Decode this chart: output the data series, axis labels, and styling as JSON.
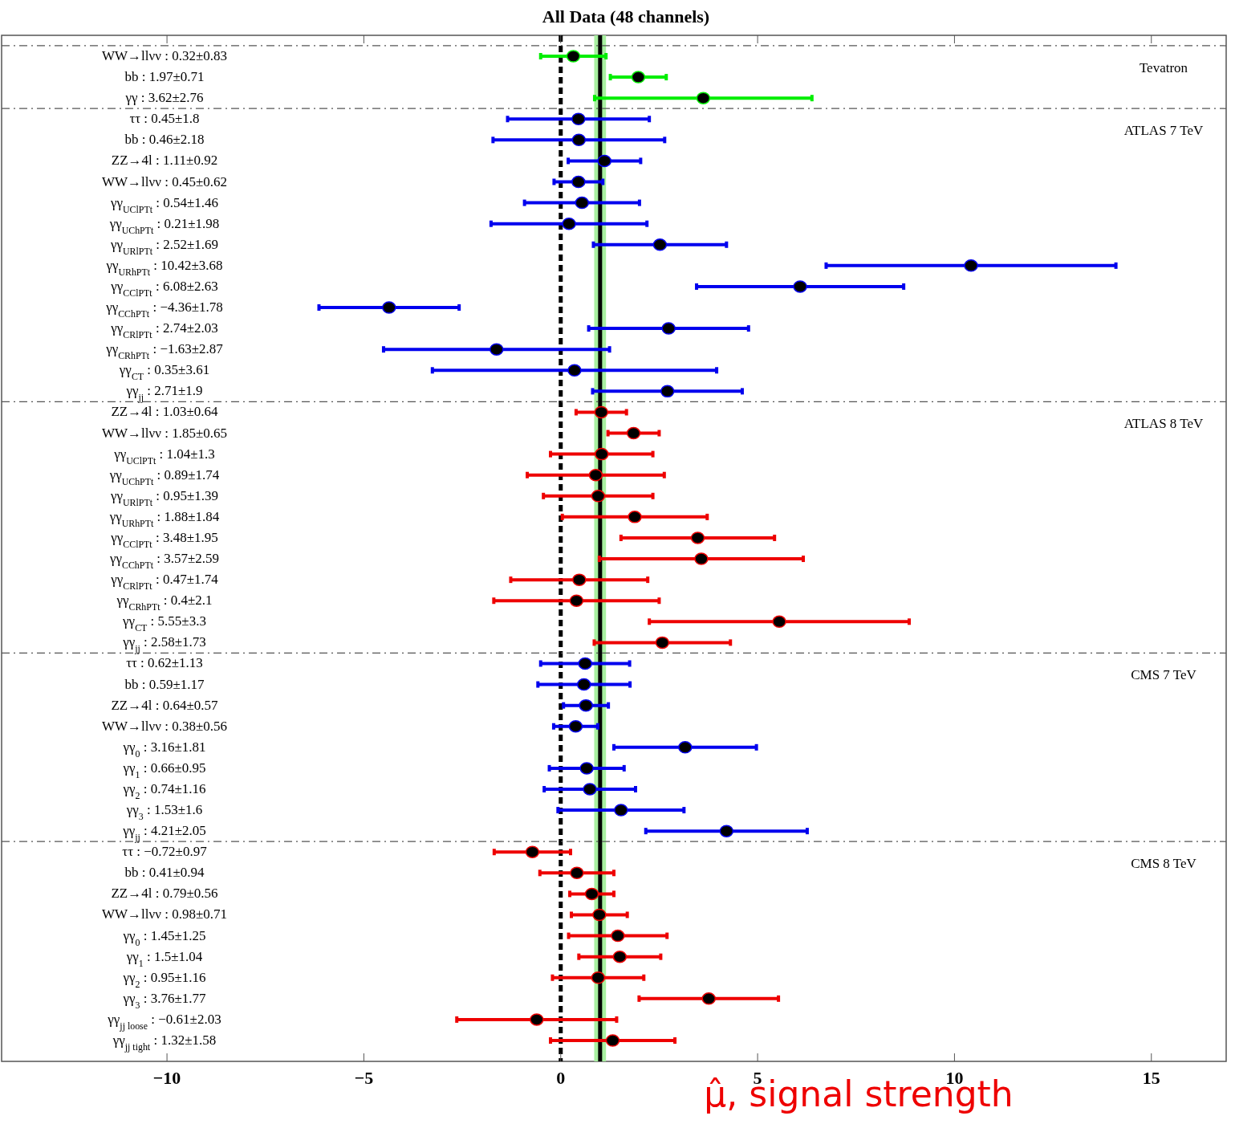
{
  "chart_data": {
    "type": "scatter",
    "orientation": "horizontal",
    "title": "All Data (48 channels)",
    "xlabel": "μ̂, signal strength",
    "marker": "circle",
    "categories": [
      "WW→llνν : 0.32±0.83",
      "bb : 1.97±0.71",
      "γγ : 3.62±2.76",
      "ττ : 0.45±1.8",
      "bb : 0.46±2.18",
      "ZZ→4l : 1.11±0.92",
      "WW→llνν : 0.45±0.62",
      "γγ$_{UClPTt}$ : 0.54±1.46",
      "γγ$_{UChPTt}$ : 0.21±1.98",
      "γγ$_{URlPTt}$ : 2.52±1.69",
      "γγ$_{URhPTt}$ : 10.42±3.68",
      "γγ$_{CClPTt}$ : 6.08±2.63",
      "γγ$_{CChPTt}$ : −4.36±1.78",
      "γγ$_{CRlPTt}$ : 2.74±2.03",
      "γγ$_{CRhPTt}$ : −1.63±2.87",
      "γγ$_{CT}$ : 0.35±3.61",
      "γγ$_{jj}$ : 2.71±1.9",
      "ZZ→4l : 1.03±0.64",
      "WW→llνν : 1.85±0.65",
      "γγ$_{UClPTt}$ : 1.04±1.3",
      "γγ$_{UChPTt}$ : 0.89±1.74",
      "γγ$_{URlPTt}$ : 0.95±1.39",
      "γγ$_{URhPTt}$ : 1.88±1.84",
      "γγ$_{CClPTt}$ : 3.48±1.95",
      "γγ$_{CChPTt}$ : 3.57±2.59",
      "γγ$_{CRlPTt}$ : 0.47±1.74",
      "γγ$_{CRhPTt}$ : 0.4±2.1",
      "γγ$_{CT}$ : 5.55±3.3",
      "γγ$_{jj}$ : 2.58±1.73",
      "ττ : 0.62±1.13",
      "bb : 0.59±1.17",
      "ZZ→4l : 0.64±0.57",
      "WW→llνν : 0.38±0.56",
      "γγ$_{0}$ : 3.16±1.81",
      "γγ$_{1}$ : 0.66±0.95",
      "γγ$_{2}$ : 0.74±1.16",
      "γγ$_{3}$ : 1.53±1.6",
      "γγ$_{jj}$ : 4.21±2.05",
      "ττ : −0.72±0.97",
      "bb : 0.41±0.94",
      "ZZ→4l : 0.79±0.56",
      "WW→llνν : 0.98±0.71",
      "γγ$_{0}$ : 1.45±1.25",
      "γγ$_{1}$ : 1.5±1.04",
      "γγ$_{2}$ : 0.95±1.16",
      "γγ$_{3}$ : 3.76±1.77",
      "γγ$_{jj loose}$ : −0.61±2.03",
      "γγ$_{jj tight}$ : 1.32±1.58"
    ],
    "series": [
      {
        "name": "Tevatron",
        "color": "#00ee00",
        "values": [
          0.32,
          1.97,
          3.62,
          null,
          null,
          null,
          null,
          null,
          null,
          null,
          null,
          null,
          null,
          null,
          null,
          null,
          null,
          null,
          null,
          null,
          null,
          null,
          null,
          null,
          null,
          null,
          null,
          null,
          null,
          null,
          null,
          null,
          null,
          null,
          null,
          null,
          null,
          null,
          null,
          null,
          null,
          null,
          null,
          null,
          null,
          null,
          null,
          null
        ],
        "errors": [
          0.83,
          0.71,
          2.76,
          null,
          null,
          null,
          null,
          null,
          null,
          null,
          null,
          null,
          null,
          null,
          null,
          null,
          null,
          null,
          null,
          null,
          null,
          null,
          null,
          null,
          null,
          null,
          null,
          null,
          null,
          null,
          null,
          null,
          null,
          null,
          null,
          null,
          null,
          null,
          null,
          null,
          null,
          null,
          null,
          null,
          null,
          null,
          null,
          null
        ]
      },
      {
        "name": "ATLAS 7 TeV",
        "color": "#0000ee",
        "values": [
          null,
          null,
          null,
          0.45,
          0.46,
          1.11,
          0.45,
          0.54,
          0.21,
          2.52,
          10.42,
          6.08,
          -4.36,
          2.74,
          -1.63,
          0.35,
          2.71,
          null,
          null,
          null,
          null,
          null,
          null,
          null,
          null,
          null,
          null,
          null,
          null,
          null,
          null,
          null,
          null,
          null,
          null,
          null,
          null,
          null,
          null,
          null,
          null,
          null,
          null,
          null,
          null,
          null,
          null,
          null
        ],
        "errors": [
          null,
          null,
          null,
          1.8,
          2.18,
          0.92,
          0.62,
          1.46,
          1.98,
          1.69,
          3.68,
          2.63,
          1.78,
          2.03,
          2.87,
          3.61,
          1.9,
          null,
          null,
          null,
          null,
          null,
          null,
          null,
          null,
          null,
          null,
          null,
          null,
          null,
          null,
          null,
          null,
          null,
          null,
          null,
          null,
          null,
          null,
          null,
          null,
          null,
          null,
          null,
          null,
          null,
          null,
          null
        ]
      },
      {
        "name": "ATLAS 8 TeV",
        "color": "#ee0000",
        "values": [
          null,
          null,
          null,
          null,
          null,
          null,
          null,
          null,
          null,
          null,
          null,
          null,
          null,
          null,
          null,
          null,
          null,
          1.03,
          1.85,
          1.04,
          0.89,
          0.95,
          1.88,
          3.48,
          3.57,
          0.47,
          0.4,
          5.55,
          2.58,
          null,
          null,
          null,
          null,
          null,
          null,
          null,
          null,
          null,
          null,
          null,
          null,
          null,
          null,
          null,
          null,
          null,
          null,
          null
        ],
        "errors": [
          null,
          null,
          null,
          null,
          null,
          null,
          null,
          null,
          null,
          null,
          null,
          null,
          null,
          null,
          null,
          null,
          null,
          0.64,
          0.65,
          1.3,
          1.74,
          1.39,
          1.84,
          1.95,
          2.59,
          1.74,
          2.1,
          3.3,
          1.73,
          null,
          null,
          null,
          null,
          null,
          null,
          null,
          null,
          null,
          null,
          null,
          null,
          null,
          null,
          null,
          null,
          null,
          null,
          null
        ]
      },
      {
        "name": "CMS 7 TeV",
        "color": "#0000ee",
        "values": [
          null,
          null,
          null,
          null,
          null,
          null,
          null,
          null,
          null,
          null,
          null,
          null,
          null,
          null,
          null,
          null,
          null,
          null,
          null,
          null,
          null,
          null,
          null,
          null,
          null,
          null,
          null,
          null,
          null,
          0.62,
          0.59,
          0.64,
          0.38,
          3.16,
          0.66,
          0.74,
          1.53,
          4.21,
          null,
          null,
          null,
          null,
          null,
          null,
          null,
          null,
          null,
          null
        ],
        "errors": [
          null,
          null,
          null,
          null,
          null,
          null,
          null,
          null,
          null,
          null,
          null,
          null,
          null,
          null,
          null,
          null,
          null,
          null,
          null,
          null,
          null,
          null,
          null,
          null,
          null,
          null,
          null,
          null,
          null,
          1.13,
          1.17,
          0.57,
          0.56,
          1.81,
          0.95,
          1.16,
          1.6,
          2.05,
          null,
          null,
          null,
          null,
          null,
          null,
          null,
          null,
          null,
          null
        ]
      },
      {
        "name": "CMS 8 TeV",
        "color": "#ee0000",
        "values": [
          null,
          null,
          null,
          null,
          null,
          null,
          null,
          null,
          null,
          null,
          null,
          null,
          null,
          null,
          null,
          null,
          null,
          null,
          null,
          null,
          null,
          null,
          null,
          null,
          null,
          null,
          null,
          null,
          null,
          null,
          null,
          null,
          null,
          null,
          null,
          null,
          null,
          null,
          -0.72,
          0.41,
          0.79,
          0.98,
          1.45,
          1.5,
          0.95,
          3.76,
          -0.61,
          1.32
        ],
        "errors": [
          null,
          null,
          null,
          null,
          null,
          null,
          null,
          null,
          null,
          null,
          null,
          null,
          null,
          null,
          null,
          null,
          null,
          null,
          null,
          null,
          null,
          null,
          null,
          null,
          null,
          null,
          null,
          null,
          null,
          null,
          null,
          null,
          null,
          null,
          null,
          null,
          null,
          null,
          0.97,
          0.94,
          0.56,
          0.71,
          1.25,
          1.04,
          1.16,
          1.77,
          2.03,
          1.58
        ]
      }
    ],
    "xlim": [
      -14.2,
      16.9
    ],
    "xticks": [
      {
        "value": -10,
        "label": "−10"
      },
      {
        "value": -5,
        "label": "−5"
      },
      0,
      5,
      10,
      15
    ],
    "ref_lines": [
      {
        "axis": "x",
        "value": 0,
        "color": "#000000",
        "line_style": "dashed"
      },
      {
        "axis": "x",
        "value": 1,
        "color": "#000000",
        "line_style": "solid"
      }
    ],
    "bands": [
      {
        "axis": "x",
        "from": 0.85,
        "to": 1.15,
        "color": "#a8f0a0"
      }
    ]
  }
}
